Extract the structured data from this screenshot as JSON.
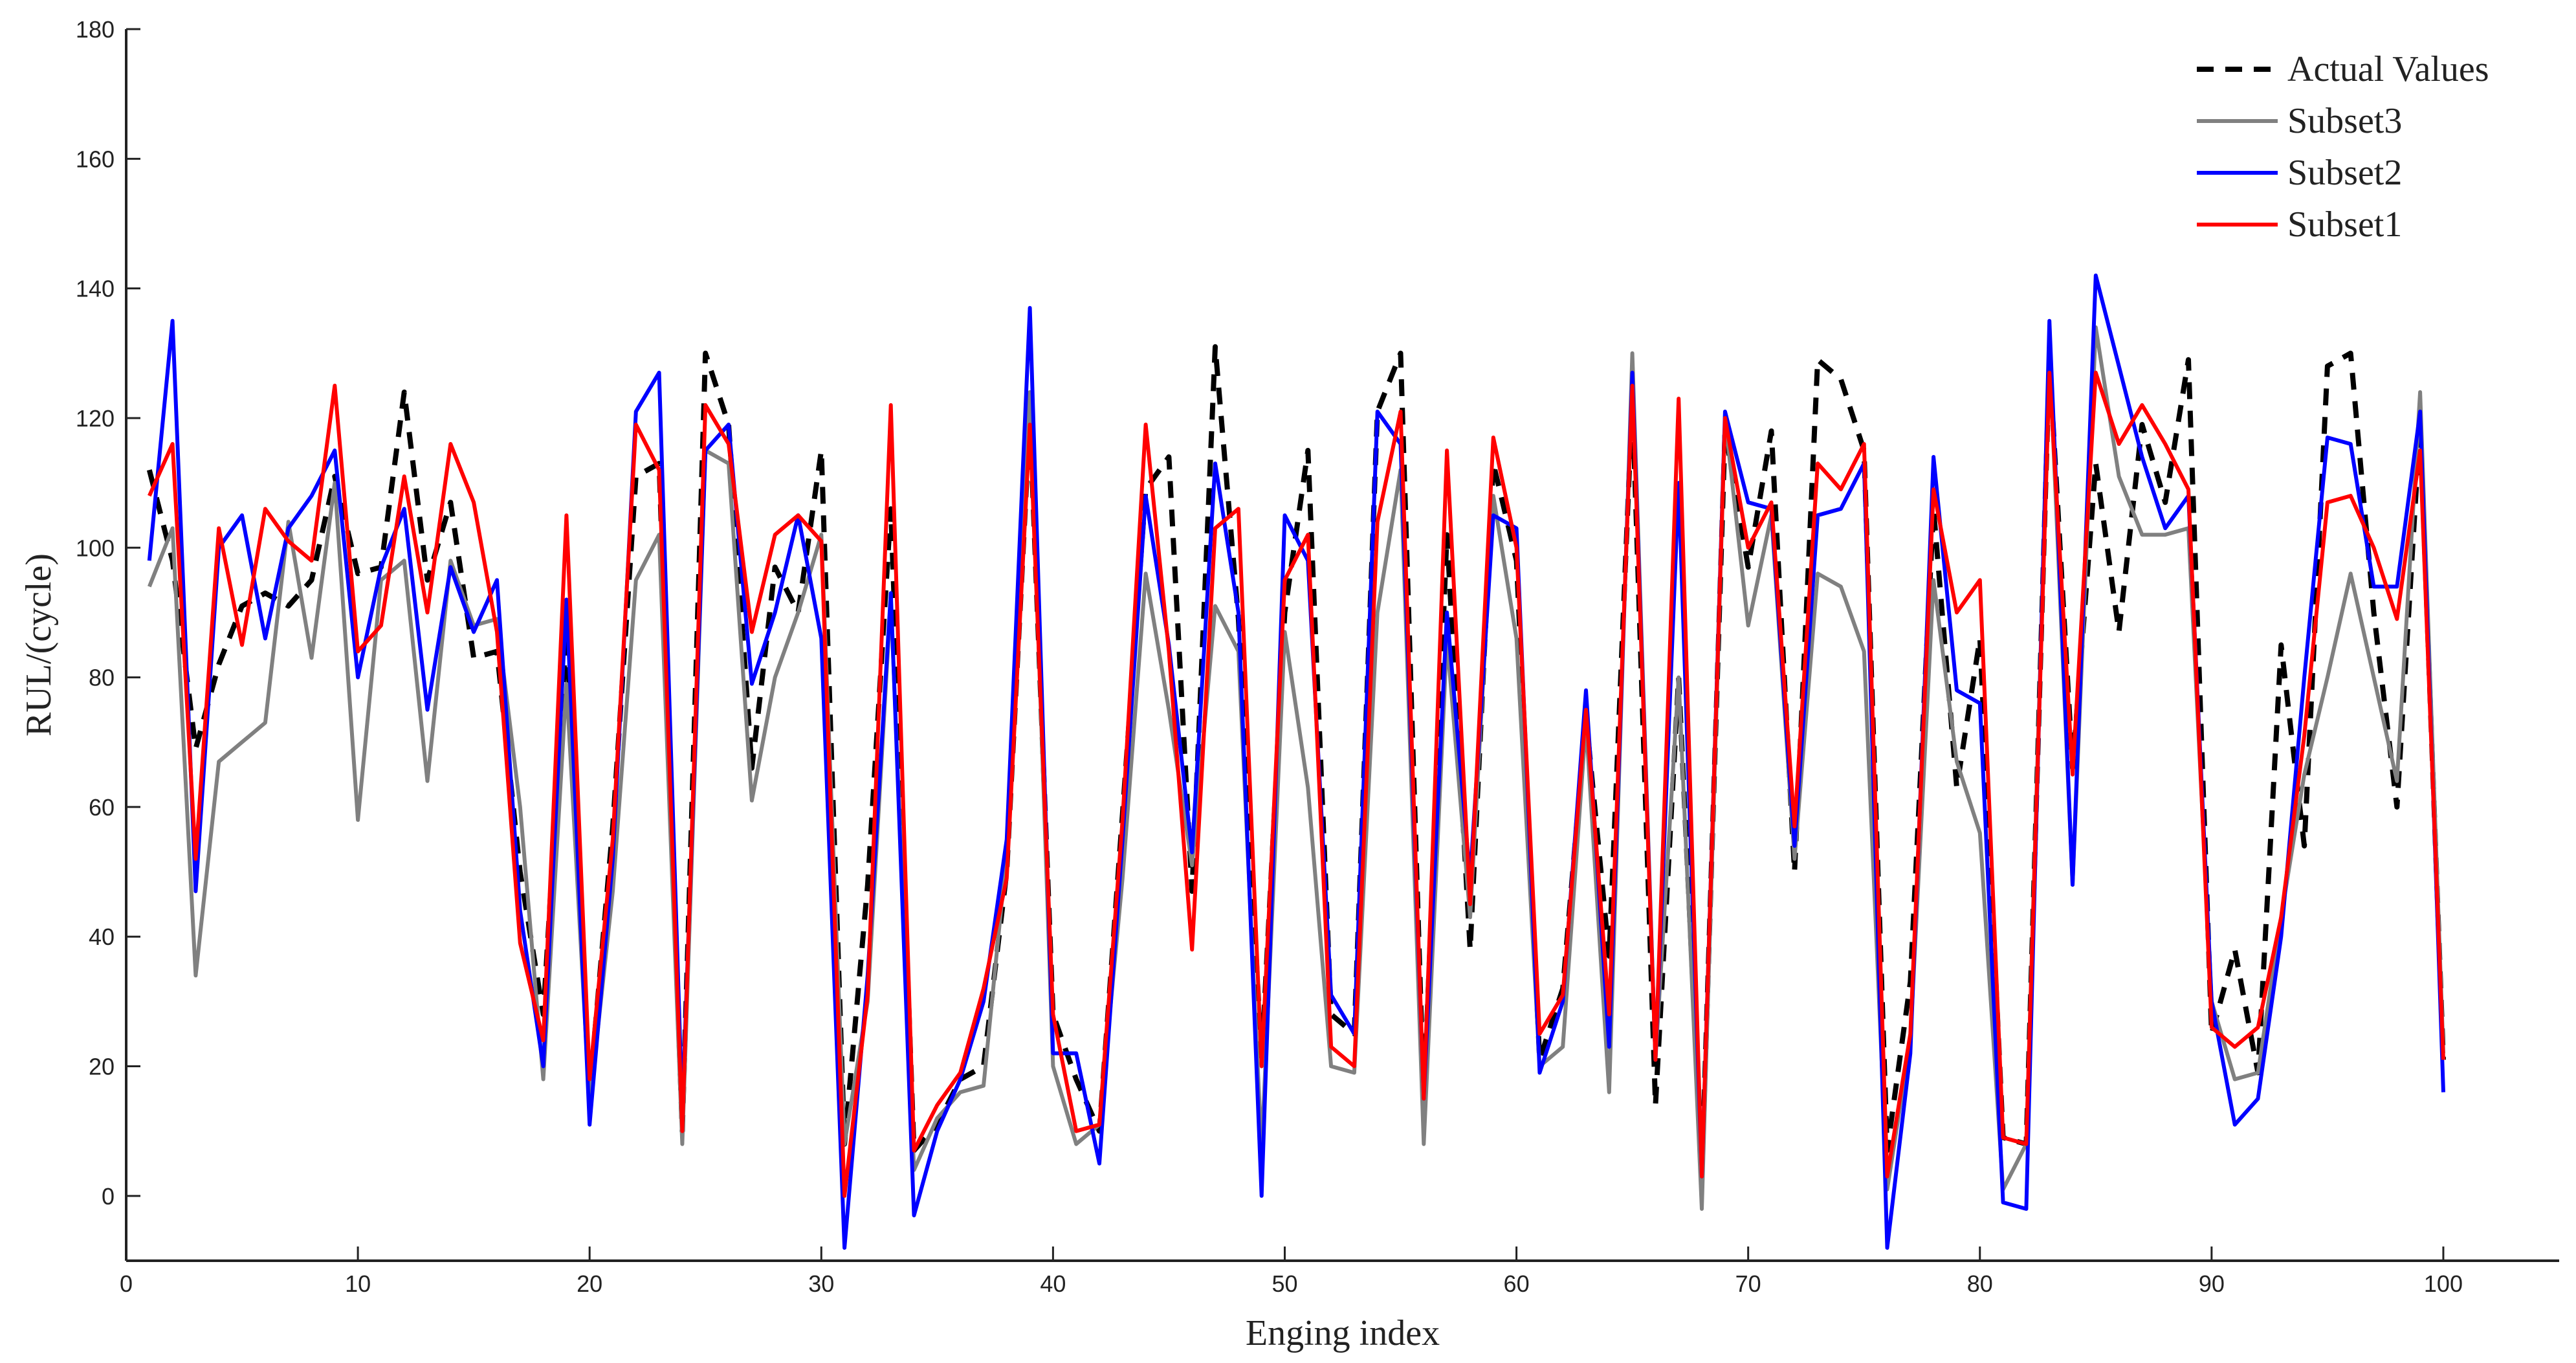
{
  "chart_data": {
    "type": "line",
    "title": "",
    "xlabel": "Enging index",
    "ylabel": "RUL/(cycle)",
    "xlim": [
      0,
      105
    ],
    "ylim": [
      -10,
      180
    ],
    "xticks": [
      "0",
      "10",
      "20",
      "30",
      "40",
      "50",
      "60",
      "70",
      "80",
      "90",
      "100"
    ],
    "yticks": [
      "0",
      "20",
      "40",
      "60",
      "80",
      "100",
      "120",
      "140",
      "160",
      "180"
    ],
    "grid": false,
    "legend_position": "top-right",
    "x": [
      1,
      2,
      3,
      4,
      5,
      6,
      7,
      8,
      9,
      10,
      11,
      12,
      13,
      14,
      15,
      16,
      17,
      18,
      19,
      20,
      21,
      22,
      23,
      24,
      25,
      26,
      27,
      28,
      29,
      30,
      31,
      32,
      33,
      34,
      35,
      36,
      37,
      38,
      39,
      40,
      41,
      42,
      43,
      44,
      45,
      46,
      47,
      48,
      49,
      50,
      51,
      52,
      53,
      54,
      55,
      56,
      57,
      58,
      59,
      60,
      61,
      62,
      63,
      64,
      65,
      66,
      67,
      68,
      69,
      70,
      71,
      72,
      73,
      74,
      75,
      76,
      77,
      78,
      79,
      80,
      81,
      82,
      83,
      84,
      85,
      86,
      87,
      88,
      89,
      90,
      91,
      92,
      93,
      94,
      95,
      96,
      97,
      98,
      99,
      100
    ],
    "series": [
      {
        "name": "Actual Values",
        "color": "#000000",
        "style": "dashed",
        "values": [
          112,
          98,
          69,
          82,
          91,
          93,
          91,
          95,
          111,
          96,
          97,
          124,
          95,
          107,
          83,
          84,
          50,
          28,
          87,
          16,
          57,
          111,
          113,
          10,
          130,
          119,
          66,
          97,
          90,
          115,
          8,
          48,
          106,
          7,
          11,
          18,
          20,
          50,
          120,
          28,
          18,
          10,
          59,
          109,
          114,
          47,
          131,
          89,
          21,
          90,
          115,
          28,
          25,
          121,
          130,
          15,
          102,
          38,
          113,
          98,
          21,
          32,
          74,
          37,
          123,
          14,
          80,
          3,
          118,
          97,
          118,
          50,
          129,
          126,
          115,
          7,
          33,
          106,
          63,
          86,
          9,
          8,
          129,
          66,
          113,
          87,
          119,
          107,
          129,
          25,
          38,
          19,
          85,
          54,
          128,
          130,
          90,
          60,
          119,
          21
        ]
      },
      {
        "name": "Subset3",
        "color": "#808080",
        "style": "solid",
        "values": [
          94,
          103,
          34,
          67,
          70,
          73,
          104,
          83,
          110,
          58,
          95,
          98,
          64,
          98,
          88,
          89,
          60,
          18,
          79,
          14,
          47,
          95,
          102,
          8,
          115,
          113,
          61,
          80,
          90,
          102,
          8,
          30,
          92,
          4,
          12,
          16,
          17,
          53,
          124,
          20,
          8,
          11,
          49,
          96,
          75,
          51,
          91,
          84,
          7,
          87,
          63,
          20,
          19,
          90,
          112,
          8,
          86,
          43,
          108,
          86,
          20,
          23,
          73,
          16,
          130,
          21,
          80,
          -2,
          120,
          88,
          105,
          52,
          96,
          94,
          84,
          1,
          24,
          95,
          67,
          56,
          1,
          8,
          130,
          48,
          134,
          111,
          102,
          102,
          103,
          30,
          18,
          19,
          43,
          65,
          80,
          96,
          80,
          64,
          124,
          22
        ]
      },
      {
        "name": "Subset2",
        "color": "#0000ff",
        "style": "solid",
        "values": [
          98,
          135,
          47,
          100,
          105,
          86,
          103,
          108,
          115,
          80,
          97,
          106,
          75,
          97,
          87,
          95,
          44,
          20,
          92,
          11,
          52,
          121,
          127,
          13,
          115,
          119,
          79,
          90,
          105,
          86,
          -8,
          34,
          93,
          -3,
          10,
          18,
          30,
          55,
          137,
          22,
          22,
          5,
          55,
          108,
          85,
          53,
          113,
          90,
          0,
          105,
          98,
          31,
          25,
          121,
          116,
          15,
          90,
          49,
          105,
          103,
          19,
          30,
          78,
          23,
          127,
          21,
          110,
          3,
          121,
          107,
          106,
          54,
          105,
          106,
          113,
          -8,
          22,
          114,
          78,
          76,
          -1,
          -2,
          135,
          48,
          142,
          128,
          114,
          103,
          108,
          30,
          11,
          15,
          40,
          80,
          117,
          116,
          94,
          94,
          121,
          16
        ]
      },
      {
        "name": "Subset1",
        "color": "#ff0000",
        "style": "solid",
        "values": [
          108,
          116,
          52,
          103,
          85,
          106,
          101,
          98,
          125,
          84,
          88,
          111,
          90,
          116,
          107,
          87,
          39,
          24,
          105,
          18,
          55,
          119,
          112,
          10,
          122,
          116,
          87,
          102,
          105,
          101,
          0,
          31,
          122,
          7,
          14,
          19,
          32,
          49,
          119,
          28,
          10,
          11,
          58,
          119,
          84,
          38,
          103,
          106,
          20,
          95,
          102,
          23,
          20,
          104,
          121,
          15,
          115,
          45,
          117,
          100,
          25,
          31,
          75,
          28,
          125,
          21,
          123,
          3,
          120,
          100,
          107,
          57,
          113,
          109,
          116,
          3,
          25,
          109,
          90,
          95,
          9,
          8,
          127,
          65,
          127,
          116,
          122,
          116,
          109,
          26,
          23,
          26,
          43,
          71,
          107,
          108,
          100,
          89,
          115,
          21
        ]
      }
    ]
  }
}
